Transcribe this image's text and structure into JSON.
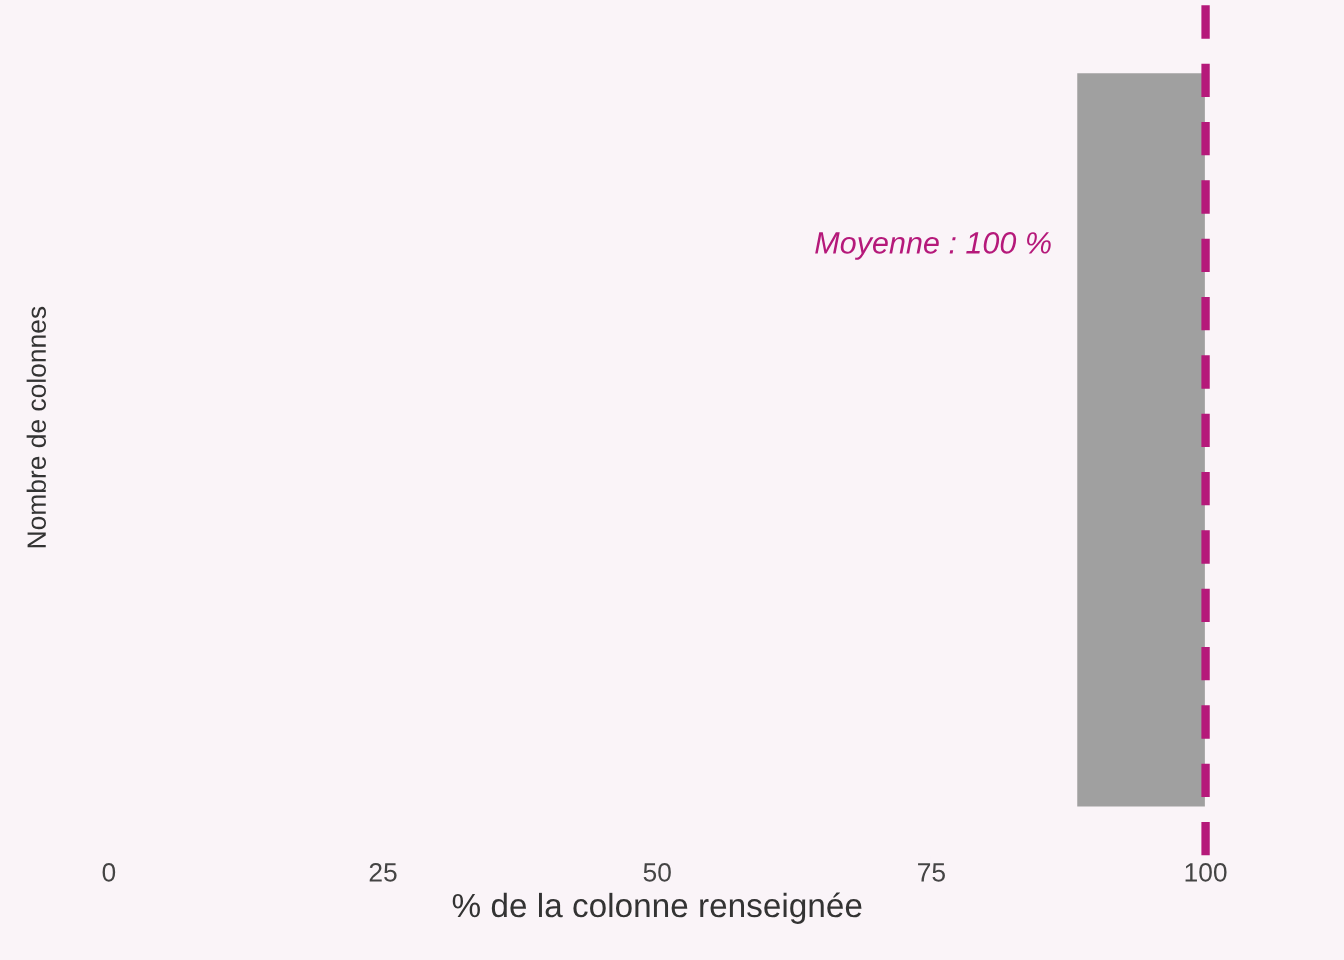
{
  "chart_data": {
    "type": "bar",
    "orientation": "horizontal",
    "xlabel": "% de la colonne renseignée",
    "ylabel": "Nombre de colonnes",
    "categories": [
      null
    ],
    "base": [
      88.3
    ],
    "values": [
      11.7
    ],
    "color": "#a0a0a0",
    "xlim": [
      0,
      100
    ],
    "xticks": [
      0,
      25,
      50,
      75,
      100
    ],
    "grid": false,
    "ref_lines": [
      {
        "axis": "x",
        "value": 100,
        "label": "Moyenne : 100 %",
        "color": "#b5197a",
        "line_style": "dashed"
      }
    ]
  }
}
